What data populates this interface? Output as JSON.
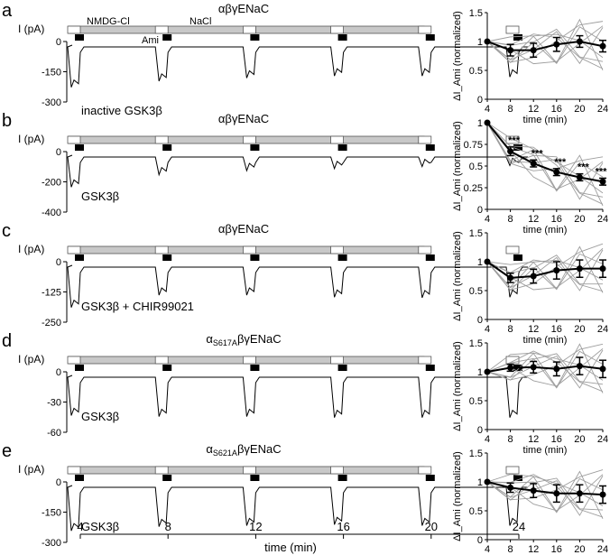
{
  "figure": {
    "time_axis": {
      "label": "time (min)",
      "ticks": [
        "4",
        "8",
        "12",
        "16",
        "20",
        "24"
      ]
    },
    "bar_labels": {
      "nmdg": "NMDG-Cl",
      "nacl": "NaCl",
      "ami": "Ami"
    },
    "ylabel_current": "I (pA)",
    "colors": {
      "trace": "#000000",
      "bar_gray": "#bdbdbd",
      "individual": "#9e9e9e",
      "mean": "#000000"
    }
  },
  "panels": [
    {
      "letter": "a",
      "title": "αβγENaC",
      "title_html": "αβγENaC",
      "yticks": [
        "0",
        "-150",
        "-300"
      ],
      "condition": "inactive GSK3β",
      "show_bar_labels": true
    },
    {
      "letter": "b",
      "title": "αβγENaC",
      "yticks": [
        "0",
        "-200",
        "-400"
      ],
      "condition": "GSK3β",
      "show_bar_labels": false
    },
    {
      "letter": "c",
      "title": "αβγENaC",
      "yticks": [
        "0",
        "-125",
        "-250"
      ],
      "condition": "GSK3β + CHIR99021",
      "show_bar_labels": false
    },
    {
      "letter": "d",
      "title_main": "α",
      "title_sub": "S617A",
      "title_rest": "βγENaC",
      "yticks": [
        "0",
        "-30",
        "-60"
      ],
      "condition": "GSK3β",
      "show_bar_labels": false
    },
    {
      "letter": "e",
      "title_main": "α",
      "title_sub": "S621A",
      "title_rest": "βγENaC",
      "yticks": [
        "0",
        "-150",
        "-300"
      ],
      "condition": "GSK3β",
      "show_bar_labels": false
    }
  ],
  "chart_data": [
    {
      "type": "line",
      "panel": "a",
      "xlabel": "time (min)",
      "ylabel": "ΔI_Ami (normalized)",
      "x": [
        4,
        8,
        12,
        16,
        20,
        24
      ],
      "xlim": [
        4,
        24
      ],
      "ylim": [
        0,
        1.5
      ],
      "yticks": [
        "0",
        "0.5",
        "1",
        "1.5"
      ],
      "xticks": [
        "4",
        "8",
        "12",
        "16",
        "20",
        "24"
      ],
      "series": [
        {
          "values": [
            1,
            0.85,
            0.85,
            0.95,
            1.0,
            0.92
          ],
          "err": [
            0,
            0.1,
            0.12,
            0.12,
            0.1,
            0.1
          ]
        }
      ],
      "significance": []
    },
    {
      "type": "line",
      "panel": "b",
      "xlabel": "time (min)",
      "ylabel": "ΔI_Ami (normalized)",
      "x": [
        4,
        8,
        12,
        16,
        20,
        24
      ],
      "xlim": [
        4,
        24
      ],
      "ylim": [
        0,
        1
      ],
      "yticks": [
        "0",
        "0.25",
        "0.5",
        "0.75",
        "1"
      ],
      "xticks": [
        "4",
        "8",
        "12",
        "16",
        "20",
        "24"
      ],
      "series": [
        {
          "values": [
            1,
            0.67,
            0.53,
            0.43,
            0.37,
            0.32
          ],
          "err": [
            0,
            0.05,
            0.04,
            0.04,
            0.04,
            0.04
          ]
        }
      ],
      "significance": [
        "",
        "***",
        "***",
        "***",
        "***",
        "***"
      ]
    },
    {
      "type": "line",
      "panel": "c",
      "xlabel": "time (min)",
      "ylabel": "ΔI_Ami (normalized)",
      "x": [
        4,
        8,
        12,
        16,
        20,
        24
      ],
      "xlim": [
        4,
        24
      ],
      "ylim": [
        0,
        1.5
      ],
      "yticks": [
        "0",
        "0.5",
        "1",
        "1.5"
      ],
      "xticks": [
        "4",
        "8",
        "12",
        "16",
        "20",
        "24"
      ],
      "series": [
        {
          "values": [
            1,
            0.72,
            0.75,
            0.85,
            0.88,
            0.88
          ],
          "err": [
            0,
            0.08,
            0.12,
            0.15,
            0.15,
            0.15
          ]
        }
      ],
      "significance": []
    },
    {
      "type": "line",
      "panel": "d",
      "xlabel": "time (min)",
      "ylabel": "ΔI_Ami (normalized)",
      "x": [
        4,
        8,
        12,
        16,
        20,
        24
      ],
      "xlim": [
        4,
        24
      ],
      "ylim": [
        0,
        1.5
      ],
      "yticks": [
        "0",
        "0.5",
        "1",
        "1.5"
      ],
      "xticks": [
        "4",
        "8",
        "12",
        "16",
        "20",
        "24"
      ],
      "series": [
        {
          "values": [
            1,
            1.07,
            1.08,
            1.05,
            1.1,
            1.05
          ],
          "err": [
            0,
            0.06,
            0.1,
            0.12,
            0.15,
            0.15
          ]
        }
      ],
      "significance": []
    },
    {
      "type": "line",
      "panel": "e",
      "xlabel": "time (min)",
      "ylabel": "ΔI_Ami (normalized)",
      "x": [
        4,
        8,
        12,
        16,
        20,
        24
      ],
      "xlim": [
        4,
        24
      ],
      "ylim": [
        0,
        1.5
      ],
      "yticks": [
        "0",
        "0.5",
        "1",
        "1.5"
      ],
      "xticks": [
        "4",
        "8",
        "12",
        "16",
        "20",
        "24"
      ],
      "series": [
        {
          "values": [
            1,
            0.9,
            0.85,
            0.8,
            0.8,
            0.78
          ],
          "err": [
            0,
            0.08,
            0.12,
            0.15,
            0.15,
            0.15
          ]
        }
      ],
      "significance": []
    }
  ]
}
